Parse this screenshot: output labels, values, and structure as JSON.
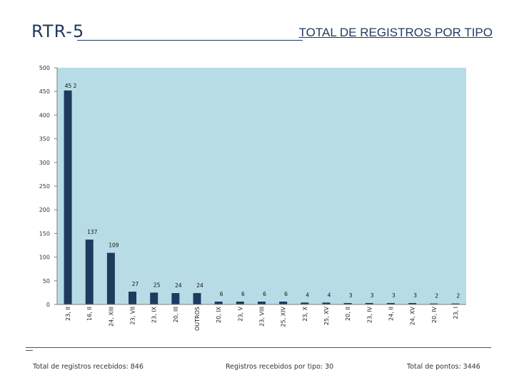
{
  "header": {
    "code": "RTR-5",
    "title": "TOTAL DE REGISTROS POR TIPO"
  },
  "chart_data": {
    "type": "bar",
    "title": "TOTAL DE REGISTROS POR TIPO",
    "xlabel": "",
    "ylabel": "",
    "ylim": [
      0,
      500
    ],
    "yticks": [
      0,
      50,
      100,
      150,
      200,
      250,
      300,
      350,
      400,
      450,
      500
    ],
    "grid": false,
    "categories": [
      "23, II",
      "16, II",
      "24, XIII",
      "23, VII",
      "23, IX",
      "20, III",
      "OUTROS",
      "20, IX",
      "23, V",
      "23, VIII",
      "25, XIV",
      "23, X",
      "25, XV",
      "20, II",
      "23, IV",
      "24, II",
      "24, XV",
      "20, IV",
      "23, I"
    ],
    "values": [
      452,
      137,
      109,
      27,
      25,
      24,
      24,
      6,
      6,
      6,
      6,
      4,
      4,
      3,
      3,
      3,
      3,
      2,
      2
    ],
    "data_labels": [
      "45 2",
      "137",
      "109",
      "27",
      "25",
      "24",
      "24",
      "6",
      "6",
      "6",
      "6",
      "4",
      "4",
      "3",
      "3",
      "3",
      "3",
      "2",
      "2"
    ],
    "colors": {
      "plot_bg": "#b7dce6",
      "bar": "#1f3a5f",
      "axis": "#7f7f7f"
    }
  },
  "footer": {
    "total_label": "Total de registros recebidos: 846",
    "types_label": "Registros recebidos por tipo: 30",
    "points_label": "Total de pontos: 3446"
  }
}
